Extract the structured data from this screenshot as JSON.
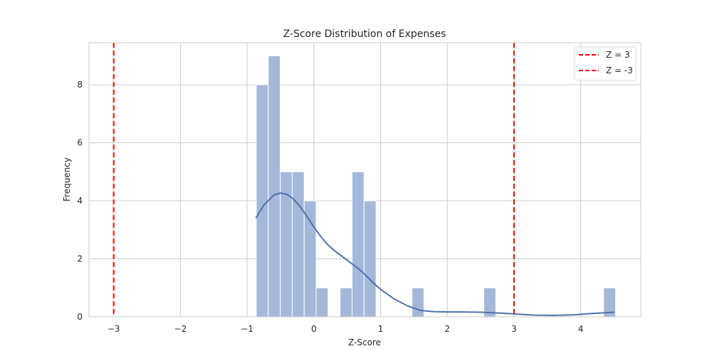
{
  "chart_data": {
    "type": "bar",
    "title": "Z-Score Distribution of Expenses",
    "xlabel": "Z-Score",
    "ylabel": "Frequency",
    "xlim": [
      -3.37,
      4.9
    ],
    "ylim": [
      0,
      9.45
    ],
    "grid": true,
    "legend_position": "upper right",
    "x_ticks": [
      "-3",
      "-2",
      "-1",
      "0",
      "1",
      "2",
      "3",
      "4"
    ],
    "x_tick_values": [
      -3,
      -2,
      -1,
      0,
      1,
      2,
      3,
      4
    ],
    "y_ticks": [
      "0",
      "2",
      "4",
      "6",
      "8"
    ],
    "y_tick_values": [
      0,
      2,
      4,
      6,
      8
    ],
    "histogram": {
      "bin_start": -0.863,
      "bin_width": 0.1795,
      "counts": [
        8,
        9,
        5,
        5,
        4,
        1,
        0,
        1,
        5,
        4,
        0,
        0,
        0,
        1,
        0,
        0,
        0,
        0,
        0,
        1,
        0,
        0,
        0,
        0,
        0,
        0,
        0,
        0,
        0,
        1
      ],
      "color": "#a4b8d9"
    },
    "kde": {
      "color": "#4c72b0",
      "x": [
        -0.87,
        -0.75,
        -0.6,
        -0.5,
        -0.4,
        -0.3,
        -0.2,
        -0.1,
        0.0,
        0.1,
        0.2,
        0.3,
        0.4,
        0.5,
        0.6,
        0.7,
        0.8,
        0.9,
        1.0,
        1.2,
        1.4,
        1.6,
        1.8,
        2.0,
        2.2,
        2.5,
        2.8,
        3.0,
        3.3,
        3.6,
        3.9,
        4.2,
        4.5
      ],
      "y": [
        3.4,
        3.85,
        4.2,
        4.27,
        4.22,
        4.05,
        3.78,
        3.45,
        3.1,
        2.78,
        2.5,
        2.3,
        2.12,
        1.95,
        1.78,
        1.6,
        1.38,
        1.15,
        0.95,
        0.62,
        0.38,
        0.22,
        0.18,
        0.17,
        0.17,
        0.16,
        0.13,
        0.1,
        0.06,
        0.05,
        0.07,
        0.12,
        0.16
      ]
    },
    "vlines": [
      {
        "x": 3,
        "label": "Z = 3",
        "color": "#ff0000",
        "style": "dashed"
      },
      {
        "x": -3,
        "label": "Z = -3",
        "color": "#ff0000",
        "style": "dashed"
      }
    ]
  }
}
